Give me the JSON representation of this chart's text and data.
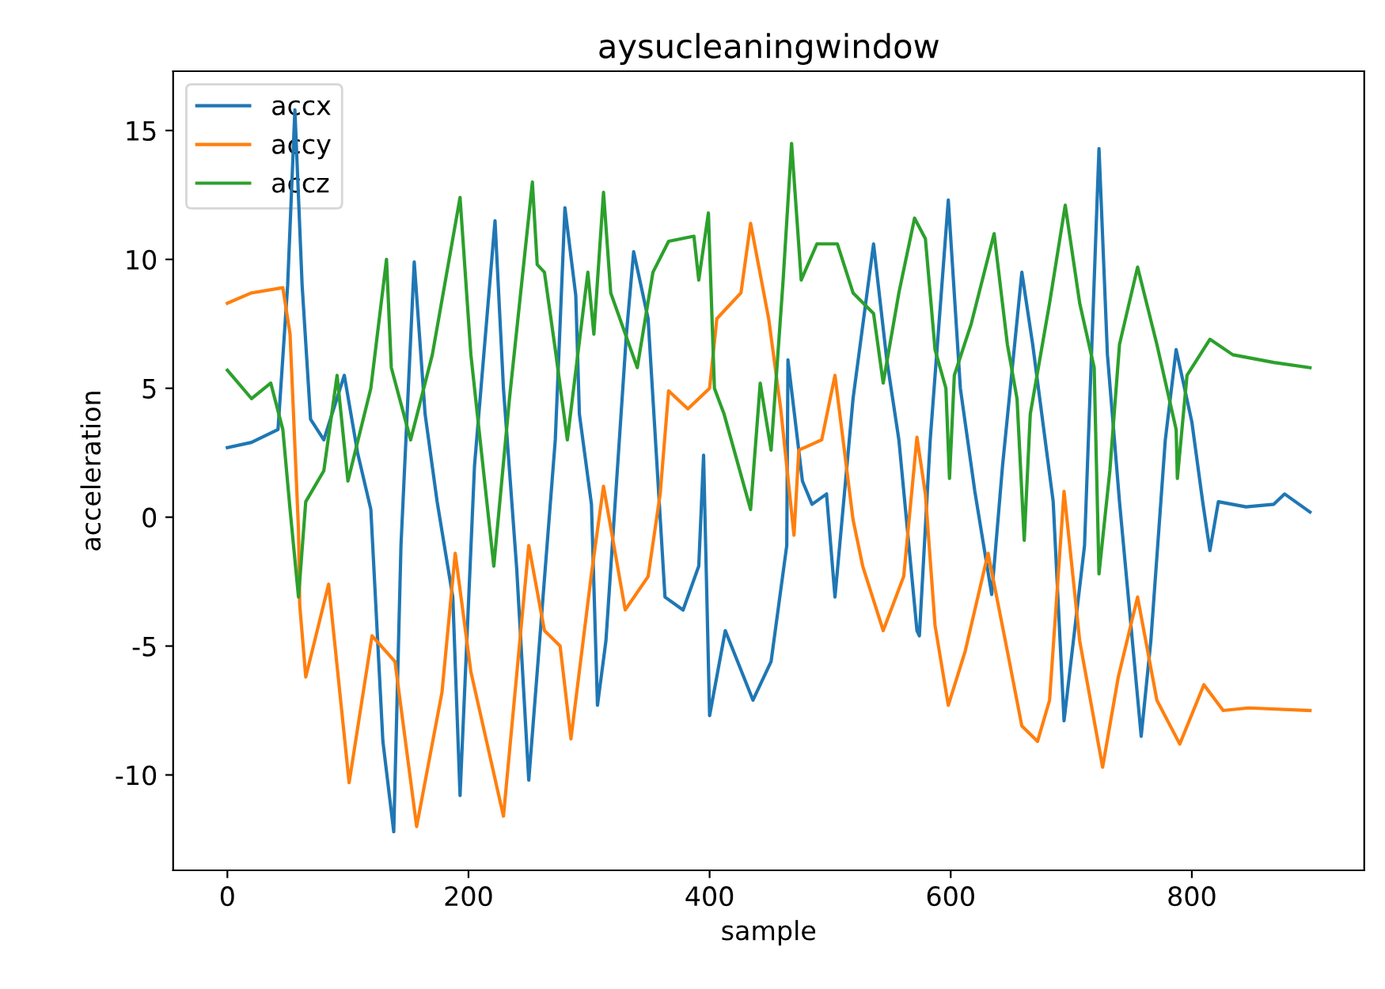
{
  "chart_data": {
    "type": "line",
    "title": "aysucleaningwindow",
    "xlabel": "sample",
    "ylabel": "acceleration",
    "xlim": [
      -45,
      943
    ],
    "ylim": [
      -13.7,
      17.3
    ],
    "xticks": [
      0,
      200,
      400,
      600,
      800
    ],
    "yticks": [
      -10,
      -5,
      0,
      5,
      10,
      15
    ],
    "grid": false,
    "legend": "top left",
    "marker": "none",
    "line_style": "solid",
    "series": [
      {
        "name": "accx",
        "color": "#1f77b4",
        "x": [
          0,
          20,
          42,
          50,
          56,
          62,
          69,
          80,
          97,
          108,
          119,
          129,
          138,
          144,
          155,
          164,
          174,
          187,
          193,
          205,
          222,
          229,
          240,
          250,
          256,
          272,
          280,
          289,
          292,
          302,
          307,
          314,
          331,
          337,
          349,
          363,
          378,
          391,
          395,
          400,
          413,
          436,
          451,
          464,
          465,
          477,
          485,
          497,
          504,
          519,
          536,
          547,
          557,
          572,
          574,
          583,
          598,
          608,
          620,
          634,
          643,
          659,
          668,
          685,
          694,
          711,
          723,
          730,
          740,
          758,
          766,
          778,
          787,
          800,
          809,
          815,
          822,
          845,
          868,
          877,
          898
        ],
        "values": [
          2.7,
          2.9,
          3.4,
          9,
          15.8,
          9,
          3.8,
          3,
          5.5,
          2.5,
          0.3,
          -8.7,
          -12.2,
          -1.1,
          9.9,
          4,
          0.6,
          -3.1,
          -10.8,
          2,
          11.5,
          5.0,
          -2,
          -10.2,
          -6.6,
          3.0,
          12.0,
          8.6,
          4.0,
          0.5,
          -7.3,
          -4.8,
          7.1,
          10.3,
          7.7,
          -3.1,
          -3.6,
          -1.9,
          2.4,
          -7.7,
          -4.4,
          -7.1,
          -5.6,
          -1.1,
          6.1,
          1.4,
          0.5,
          0.9,
          -3.1,
          4.6,
          10.6,
          6.1,
          3.0,
          -4.4,
          -4.6,
          3.0,
          12.3,
          5.0,
          1,
          -3.0,
          2.0,
          9.5,
          6.7,
          0.6,
          -7.9,
          -1.1,
          14.3,
          6.3,
          0.6,
          -8.5,
          -4.8,
          3.0,
          6.5,
          3.7,
          0.6,
          -1.3,
          0.6,
          0.4,
          0.5,
          0.9,
          0.2
        ]
      },
      {
        "name": "accy",
        "color": "#ff7f0e",
        "x": [
          0,
          20,
          46,
          52,
          59,
          60,
          65,
          84,
          101,
          120,
          139,
          157,
          178,
          189,
          202,
          229,
          250,
          263,
          276,
          285,
          302,
          312,
          330,
          349,
          359,
          366,
          382,
          400,
          406,
          426,
          434,
          449,
          459,
          470,
          474,
          493,
          504,
          519,
          527,
          544,
          561,
          572,
          579,
          587,
          598,
          612,
          631,
          647,
          659,
          672,
          682,
          694,
          707,
          726,
          739,
          755,
          771,
          790,
          810,
          826,
          847,
          898
        ],
        "values": [
          8.3,
          8.7,
          8.9,
          7.1,
          -0.5,
          -3.4,
          -6.2,
          -2.6,
          -10.3,
          -4.6,
          -5.6,
          -12.0,
          -6.8,
          -1.4,
          -6.0,
          -11.6,
          -1.1,
          -4.4,
          -5.0,
          -8.6,
          -2.2,
          1.2,
          -3.6,
          -2.3,
          0.9,
          4.9,
          4.2,
          5.0,
          7.7,
          8.7,
          11.4,
          7.7,
          4.2,
          -0.7,
          2.6,
          3.0,
          5.5,
          -0.1,
          -1.9,
          -4.4,
          -2.3,
          3.1,
          0.9,
          -4.2,
          -7.3,
          -5.2,
          -1.4,
          -5.2,
          -8.1,
          -8.7,
          -7.1,
          1.0,
          -4.8,
          -9.7,
          -6.2,
          -3.1,
          -7.1,
          -8.8,
          -6.5,
          -7.5,
          -7.4,
          -7.5
        ]
      },
      {
        "name": "accz",
        "color": "#2ca02c",
        "x": [
          0,
          20,
          36,
          46,
          52,
          59,
          65,
          80,
          91,
          100,
          119,
          132,
          136,
          152,
          170,
          193,
          202,
          221,
          234,
          253,
          257,
          263,
          272,
          282,
          299,
          304,
          312,
          318,
          340,
          353,
          366,
          387,
          391,
          399,
          404,
          412,
          434,
          442,
          451,
          461,
          468,
          476,
          489,
          506,
          519,
          536,
          544,
          557,
          570,
          579,
          587,
          596,
          599,
          603,
          617,
          636,
          647,
          655,
          661,
          666,
          682,
          695,
          707,
          719,
          723,
          732,
          740,
          755,
          771,
          787,
          788,
          796,
          815,
          834,
          868,
          898
        ],
        "values": [
          5.7,
          4.6,
          5.2,
          3.4,
          0.3,
          -3.1,
          0.6,
          1.8,
          5.5,
          1.4,
          5.0,
          10.0,
          5.8,
          3.0,
          6.3,
          12.4,
          6.3,
          -1.9,
          4.6,
          13.0,
          9.8,
          9.5,
          6.5,
          3.0,
          9.5,
          7.1,
          12.6,
          8.7,
          5.8,
          9.5,
          10.7,
          10.9,
          9.2,
          11.8,
          5.0,
          4.0,
          0.3,
          5.2,
          2.6,
          9.2,
          14.5,
          9.2,
          10.6,
          10.6,
          8.7,
          7.9,
          5.2,
          8.7,
          11.6,
          10.8,
          6.5,
          5.0,
          1.5,
          5.5,
          7.5,
          11.0,
          6.7,
          4.6,
          -0.9,
          4.0,
          8.3,
          12.1,
          8.3,
          5.8,
          -2.2,
          1.8,
          6.7,
          9.7,
          6.7,
          3.4,
          1.5,
          5.5,
          6.9,
          6.3,
          6.0,
          5.8
        ]
      }
    ]
  }
}
